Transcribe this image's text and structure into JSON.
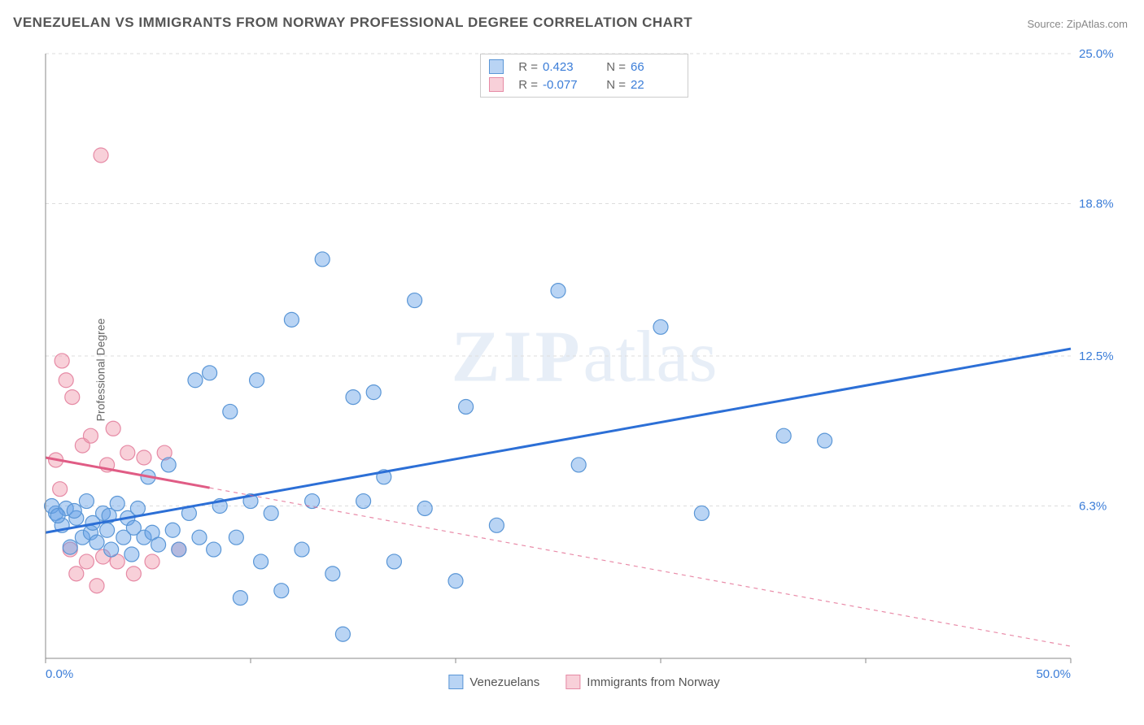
{
  "title": "VENEZUELAN VS IMMIGRANTS FROM NORWAY PROFESSIONAL DEGREE CORRELATION CHART",
  "source": "Source: ZipAtlas.com",
  "y_axis_label": "Professional Degree",
  "watermark_a": "ZIP",
  "watermark_b": "atlas",
  "chart": {
    "type": "scatter",
    "background_color": "#ffffff",
    "grid_color": "#dddddd",
    "axis_color": "#888888",
    "xlim": [
      0,
      50
    ],
    "ylim": [
      0,
      25
    ],
    "x_ticks": [
      0,
      10,
      20,
      30,
      40,
      50
    ],
    "x_tick_labels": [
      "0.0%",
      "",
      "",
      "",
      "",
      "50.0%"
    ],
    "y_ticks": [
      6.3,
      12.5,
      18.8,
      25.0
    ],
    "y_tick_labels": [
      "6.3%",
      "12.5%",
      "18.8%",
      "25.0%"
    ],
    "marker_radius": 9,
    "marker_opacity": 0.5,
    "line_width": 3,
    "series": [
      {
        "name": "Venezuelans",
        "color_fill": "rgba(100,160,230,0.45)",
        "color_stroke": "#5a96d6",
        "line_color": "#2c6fd6",
        "r": 0.423,
        "n": 66,
        "trend": {
          "x1": 0,
          "y1": 5.2,
          "x2": 50,
          "y2": 12.8
        },
        "trend_dash": "none",
        "points": [
          [
            0.5,
            6.0
          ],
          [
            0.8,
            5.5
          ],
          [
            1.0,
            6.2
          ],
          [
            1.2,
            4.6
          ],
          [
            1.5,
            5.8
          ],
          [
            1.8,
            5.0
          ],
          [
            2.0,
            6.5
          ],
          [
            2.2,
            5.2
          ],
          [
            2.5,
            4.8
          ],
          [
            2.8,
            6.0
          ],
          [
            3.0,
            5.3
          ],
          [
            3.2,
            4.5
          ],
          [
            3.5,
            6.4
          ],
          [
            3.8,
            5.0
          ],
          [
            4.0,
            5.8
          ],
          [
            4.2,
            4.3
          ],
          [
            4.5,
            6.2
          ],
          [
            4.8,
            5.0
          ],
          [
            5.0,
            7.5
          ],
          [
            5.2,
            5.2
          ],
          [
            5.5,
            4.7
          ],
          [
            6.0,
            8.0
          ],
          [
            6.2,
            5.3
          ],
          [
            6.5,
            4.5
          ],
          [
            7.0,
            6.0
          ],
          [
            7.3,
            11.5
          ],
          [
            7.5,
            5.0
          ],
          [
            8.0,
            11.8
          ],
          [
            8.2,
            4.5
          ],
          [
            8.5,
            6.3
          ],
          [
            9.0,
            10.2
          ],
          [
            9.3,
            5.0
          ],
          [
            9.5,
            2.5
          ],
          [
            10.0,
            6.5
          ],
          [
            10.3,
            11.5
          ],
          [
            10.5,
            4.0
          ],
          [
            11.0,
            6.0
          ],
          [
            11.5,
            2.8
          ],
          [
            12.0,
            14.0
          ],
          [
            12.5,
            4.5
          ],
          [
            13.0,
            6.5
          ],
          [
            13.5,
            16.5
          ],
          [
            14.0,
            3.5
          ],
          [
            14.5,
            1.0
          ],
          [
            15.0,
            10.8
          ],
          [
            15.5,
            6.5
          ],
          [
            16.0,
            11.0
          ],
          [
            16.5,
            7.5
          ],
          [
            17.0,
            4.0
          ],
          [
            18.0,
            14.8
          ],
          [
            18.5,
            6.2
          ],
          [
            20.0,
            3.2
          ],
          [
            20.5,
            10.4
          ],
          [
            22.0,
            5.5
          ],
          [
            25.0,
            15.2
          ],
          [
            26.0,
            8.0
          ],
          [
            30.0,
            13.7
          ],
          [
            32.0,
            6.0
          ],
          [
            36.0,
            9.2
          ],
          [
            38.0,
            9.0
          ],
          [
            0.3,
            6.3
          ],
          [
            0.6,
            5.9
          ],
          [
            1.4,
            6.1
          ],
          [
            2.3,
            5.6
          ],
          [
            3.1,
            5.9
          ],
          [
            4.3,
            5.4
          ]
        ]
      },
      {
        "name": "Immigrants from Norway",
        "color_fill": "rgba(240,150,170,0.45)",
        "color_stroke": "#e68aa5",
        "line_color": "#e05c85",
        "r": -0.077,
        "n": 22,
        "trend": {
          "x1": 0,
          "y1": 8.3,
          "x2": 50,
          "y2": 0.5
        },
        "trend_solid_until": 8,
        "points": [
          [
            0.5,
            8.2
          ],
          [
            0.7,
            7.0
          ],
          [
            0.8,
            12.3
          ],
          [
            1.0,
            11.5
          ],
          [
            1.2,
            4.5
          ],
          [
            1.3,
            10.8
          ],
          [
            1.5,
            3.5
          ],
          [
            1.8,
            8.8
          ],
          [
            2.0,
            4.0
          ],
          [
            2.2,
            9.2
          ],
          [
            2.5,
            3.0
          ],
          [
            2.7,
            20.8
          ],
          [
            2.8,
            4.2
          ],
          [
            3.0,
            8.0
          ],
          [
            3.3,
            9.5
          ],
          [
            3.5,
            4.0
          ],
          [
            4.0,
            8.5
          ],
          [
            4.3,
            3.5
          ],
          [
            4.8,
            8.3
          ],
          [
            5.2,
            4.0
          ],
          [
            5.8,
            8.5
          ],
          [
            6.5,
            4.5
          ]
        ]
      }
    ]
  },
  "legend_top": [
    {
      "swatch_fill": "rgba(100,160,230,0.45)",
      "swatch_stroke": "#5a96d6",
      "r": "0.423",
      "n": "66"
    },
    {
      "swatch_fill": "rgba(240,150,170,0.45)",
      "swatch_stroke": "#e68aa5",
      "r": "-0.077",
      "n": "22"
    }
  ],
  "legend_bottom": [
    {
      "label": "Venezuelans",
      "swatch_fill": "rgba(100,160,230,0.45)",
      "swatch_stroke": "#5a96d6"
    },
    {
      "label": "Immigrants from Norway",
      "swatch_fill": "rgba(240,150,170,0.45)",
      "swatch_stroke": "#e68aa5"
    }
  ],
  "labels": {
    "R": "R =",
    "N": "N ="
  }
}
